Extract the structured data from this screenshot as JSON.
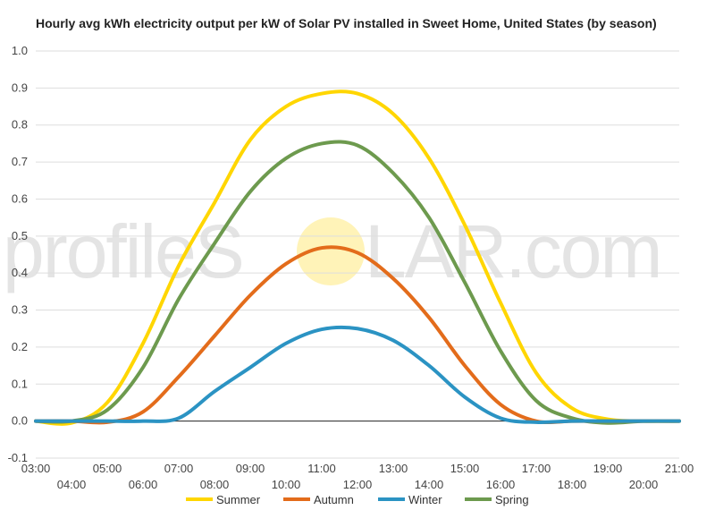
{
  "chart_data": {
    "type": "line",
    "title": "Hourly avg kWh electricity output per kW of Solar PV installed in Sweet Home, United States (by season)",
    "xlabel": "",
    "ylabel": "",
    "ylim": [
      -0.1,
      1.0
    ],
    "yticks": [
      "-0.1",
      "0.0",
      "0.1",
      "0.2",
      "0.3",
      "0.4",
      "0.5",
      "0.6",
      "0.7",
      "0.8",
      "0.9",
      "1.0"
    ],
    "xticks": [
      "03:00",
      "04:00",
      "05:00",
      "06:00",
      "07:00",
      "08:00",
      "09:00",
      "10:00",
      "11:00",
      "12:00",
      "13:00",
      "14:00",
      "15:00",
      "16:00",
      "17:00",
      "18:00",
      "19:00",
      "20:00",
      "21:00"
    ],
    "grid": true,
    "legend": "bottom",
    "x": [
      3,
      4,
      5,
      6,
      7,
      8,
      9,
      10,
      11,
      12,
      13,
      14,
      15,
      16,
      17,
      18,
      19,
      20,
      21
    ],
    "series": [
      {
        "name": "Summer",
        "color": "#ffd600",
        "values": [
          0.0,
          -0.005,
          0.05,
          0.21,
          0.42,
          0.59,
          0.76,
          0.85,
          0.885,
          0.885,
          0.83,
          0.71,
          0.53,
          0.32,
          0.13,
          0.035,
          0.005,
          0.0,
          0.0
        ]
      },
      {
        "name": "Autumn",
        "color": "#e36c1b",
        "values": [
          0.0,
          0.0,
          -0.003,
          0.025,
          0.12,
          0.23,
          0.34,
          0.425,
          0.468,
          0.455,
          0.385,
          0.28,
          0.15,
          0.045,
          0.0,
          0.0,
          0.0,
          0.0,
          0.0
        ]
      },
      {
        "name": "Winter",
        "color": "#2b93c3",
        "values": [
          0.0,
          0.0,
          0.0,
          0.0,
          0.008,
          0.08,
          0.145,
          0.21,
          0.248,
          0.25,
          0.218,
          0.15,
          0.065,
          0.008,
          -0.003,
          0.0,
          0.0,
          0.0,
          0.0
        ]
      },
      {
        "name": "Spring",
        "color": "#6d9a4e",
        "values": [
          0.0,
          0.0,
          0.03,
          0.145,
          0.33,
          0.48,
          0.62,
          0.71,
          0.75,
          0.745,
          0.67,
          0.55,
          0.375,
          0.19,
          0.055,
          0.008,
          -0.005,
          0.0,
          0.0
        ]
      }
    ]
  },
  "watermark": {
    "text_left": "profileS",
    "text_right": "LAR.com",
    "sun_color": "#fff3b8"
  }
}
